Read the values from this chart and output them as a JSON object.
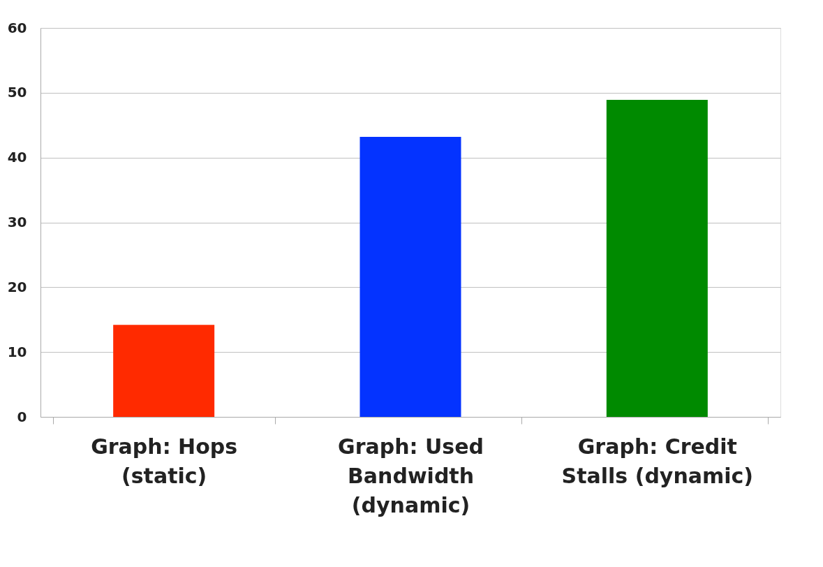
{
  "chart_data": {
    "type": "bar",
    "categories": [
      "Graph: Hops (static)",
      "Graph: Used Bandwidth (dynamic)",
      "Graph: Credit Stalls (dynamic)"
    ],
    "values": [
      14.2,
      43.2,
      48.9
    ],
    "colors": [
      "#ff2a00",
      "#0433ff",
      "#008a00"
    ],
    "ylim": [
      0,
      60
    ],
    "yticks": [
      0,
      10,
      20,
      30,
      40,
      50,
      60
    ],
    "grid": "y"
  }
}
